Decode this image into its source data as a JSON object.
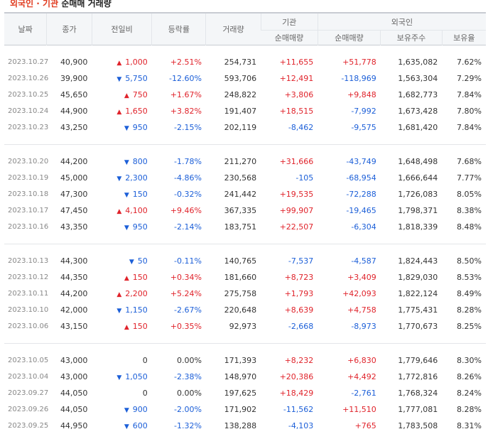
{
  "title": {
    "highlight": "외국인 · 기관",
    "rest": "순매매 거래량"
  },
  "headers": {
    "date": "날짜",
    "close": "종가",
    "change": "전일비",
    "rate": "등락률",
    "volume": "거래량",
    "inst": "기관",
    "foreign": "외국인",
    "inst_net": "순매매량",
    "foreign_net": "순매매량",
    "holdings": "보유주수",
    "ratio": "보유율"
  },
  "groups": [
    [
      {
        "date": "2023.10.27",
        "close": "40,900",
        "dir": "up",
        "change": "1,000",
        "rate": "+2.51%",
        "volume": "254,731",
        "inst": "+11,655",
        "foreign": "+51,778",
        "holdings": "1,635,082",
        "ratio": "7.62%"
      },
      {
        "date": "2023.10.26",
        "close": "39,900",
        "dir": "down",
        "change": "5,750",
        "rate": "-12.60%",
        "volume": "593,706",
        "inst": "+12,491",
        "foreign": "-118,969",
        "holdings": "1,563,304",
        "ratio": "7.29%"
      },
      {
        "date": "2023.10.25",
        "close": "45,650",
        "dir": "up",
        "change": "750",
        "rate": "+1.67%",
        "volume": "248,822",
        "inst": "+3,806",
        "foreign": "+9,848",
        "holdings": "1,682,773",
        "ratio": "7.84%"
      },
      {
        "date": "2023.10.24",
        "close": "44,900",
        "dir": "up",
        "change": "1,650",
        "rate": "+3.82%",
        "volume": "191,407",
        "inst": "+18,515",
        "foreign": "-7,992",
        "holdings": "1,673,428",
        "ratio": "7.80%"
      },
      {
        "date": "2023.10.23",
        "close": "43,250",
        "dir": "down",
        "change": "950",
        "rate": "-2.15%",
        "volume": "202,119",
        "inst": "-8,462",
        "foreign": "-9,575",
        "holdings": "1,681,420",
        "ratio": "7.84%"
      }
    ],
    [
      {
        "date": "2023.10.20",
        "close": "44,200",
        "dir": "down",
        "change": "800",
        "rate": "-1.78%",
        "volume": "211,270",
        "inst": "+31,666",
        "foreign": "-43,749",
        "holdings": "1,648,498",
        "ratio": "7.68%"
      },
      {
        "date": "2023.10.19",
        "close": "45,000",
        "dir": "down",
        "change": "2,300",
        "rate": "-4.86%",
        "volume": "230,568",
        "inst": "-105",
        "foreign": "-68,954",
        "holdings": "1,666,644",
        "ratio": "7.77%"
      },
      {
        "date": "2023.10.18",
        "close": "47,300",
        "dir": "down",
        "change": "150",
        "rate": "-0.32%",
        "volume": "241,442",
        "inst": "+19,535",
        "foreign": "-72,288",
        "holdings": "1,726,083",
        "ratio": "8.05%"
      },
      {
        "date": "2023.10.17",
        "close": "47,450",
        "dir": "up",
        "change": "4,100",
        "rate": "+9.46%",
        "volume": "367,335",
        "inst": "+99,907",
        "foreign": "-19,465",
        "holdings": "1,798,371",
        "ratio": "8.38%"
      },
      {
        "date": "2023.10.16",
        "close": "43,350",
        "dir": "down",
        "change": "950",
        "rate": "-2.14%",
        "volume": "183,751",
        "inst": "+22,507",
        "foreign": "-6,304",
        "holdings": "1,818,339",
        "ratio": "8.48%"
      }
    ],
    [
      {
        "date": "2023.10.13",
        "close": "44,300",
        "dir": "down",
        "change": "50",
        "rate": "-0.11%",
        "volume": "140,765",
        "inst": "-7,537",
        "foreign": "-4,587",
        "holdings": "1,824,443",
        "ratio": "8.50%"
      },
      {
        "date": "2023.10.12",
        "close": "44,350",
        "dir": "up",
        "change": "150",
        "rate": "+0.34%",
        "volume": "181,660",
        "inst": "+8,723",
        "foreign": "+3,409",
        "holdings": "1,829,030",
        "ratio": "8.53%"
      },
      {
        "date": "2023.10.11",
        "close": "44,200",
        "dir": "up",
        "change": "2,200",
        "rate": "+5.24%",
        "volume": "275,758",
        "inst": "+1,793",
        "foreign": "+42,093",
        "holdings": "1,822,124",
        "ratio": "8.49%"
      },
      {
        "date": "2023.10.10",
        "close": "42,000",
        "dir": "down",
        "change": "1,150",
        "rate": "-2.67%",
        "volume": "220,648",
        "inst": "+8,639",
        "foreign": "+4,758",
        "holdings": "1,775,431",
        "ratio": "8.28%"
      },
      {
        "date": "2023.10.06",
        "close": "43,150",
        "dir": "up",
        "change": "150",
        "rate": "+0.35%",
        "volume": "92,973",
        "inst": "-2,668",
        "foreign": "-8,973",
        "holdings": "1,770,673",
        "ratio": "8.25%"
      }
    ],
    [
      {
        "date": "2023.10.05",
        "close": "43,000",
        "dir": "none",
        "change": "0",
        "rate": "0.00%",
        "volume": "171,393",
        "inst": "+8,232",
        "foreign": "+6,830",
        "holdings": "1,779,646",
        "ratio": "8.30%"
      },
      {
        "date": "2023.10.04",
        "close": "43,000",
        "dir": "down",
        "change": "1,050",
        "rate": "-2.38%",
        "volume": "148,970",
        "inst": "+20,386",
        "foreign": "+4,492",
        "holdings": "1,772,816",
        "ratio": "8.26%"
      },
      {
        "date": "2023.09.27",
        "close": "44,050",
        "dir": "none",
        "change": "0",
        "rate": "0.00%",
        "volume": "197,625",
        "inst": "+18,429",
        "foreign": "-2,761",
        "holdings": "1,768,324",
        "ratio": "8.24%"
      },
      {
        "date": "2023.09.26",
        "close": "44,050",
        "dir": "down",
        "change": "900",
        "rate": "-2.00%",
        "volume": "171,902",
        "inst": "-11,562",
        "foreign": "+11,510",
        "holdings": "1,777,081",
        "ratio": "8.28%"
      },
      {
        "date": "2023.09.25",
        "close": "44,950",
        "dir": "down",
        "change": "600",
        "rate": "-1.32%",
        "volume": "138,288",
        "inst": "-4,103",
        "foreign": "+765",
        "holdings": "1,783,508",
        "ratio": "8.31%"
      }
    ]
  ],
  "colors": {
    "up": "#e0232b",
    "down": "#1c5fd8",
    "title_highlight": "#e03a1e",
    "header_bg": "#f4f6f8"
  }
}
